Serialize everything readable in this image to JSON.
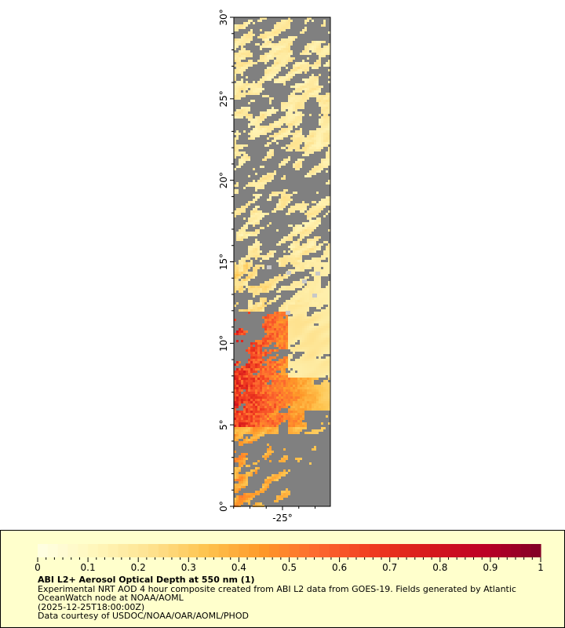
{
  "map": {
    "lat_range": [
      0,
      30
    ],
    "lon_center_label": "-25°",
    "lat_labels": [
      "0°",
      "5°",
      "10°",
      "15°",
      "20°",
      "25°",
      "30°"
    ],
    "lon_labels": [
      "-25°"
    ],
    "land_nodata_color": "#808080",
    "cloud_color": "#c8c8c8"
  },
  "legend": {
    "colorbar": {
      "min": 0,
      "max": 1,
      "tick_labels": [
        "0",
        "0.1",
        "0.2",
        "0.3",
        "0.4",
        "0.5",
        "0.6",
        "0.7",
        "0.8",
        "0.9",
        "1"
      ],
      "colors": [
        "#ffffe5",
        "#fff7bc",
        "#fee391",
        "#fec44f",
        "#fe9929",
        "#fd6a2f",
        "#f03b20",
        "#d7191c",
        "#bd0026",
        "#800026"
      ]
    },
    "title": "ABI L2+ Aerosol Optical Depth at 550 nm (1)",
    "description_line1": "Experimental NRT AOD 4 hour composite created from ABI L2 data from GOES-19. Fields generated by Atlantic",
    "description_line2": "OceanWatch node at NOAA/AOML",
    "time": "(2025-12-25T18:00:00Z)",
    "credit": "Data courtesy of USDOC/NOAA/OAR/AOML/PHOD"
  }
}
